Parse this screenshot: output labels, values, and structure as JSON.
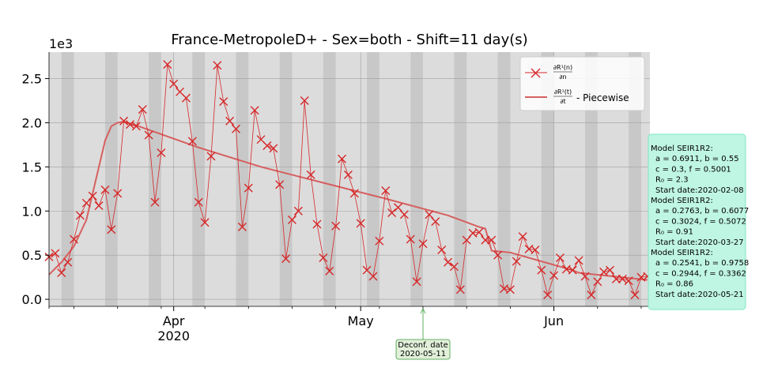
{
  "chart_data": {
    "type": "line",
    "title": "France-MetropoleD+ - Sex=both - Shift=11 day(s)",
    "y_offset_label": "1e3",
    "x_start": "2020-03-12",
    "x_end": "2020-06-05",
    "ylim": [
      -0.08,
      2.8
    ],
    "yticks": [
      0.0,
      0.5,
      1.0,
      1.5,
      2.0,
      2.5
    ],
    "ytick_labels": [
      "0.0",
      "0.5",
      "1.0",
      "1.5",
      "2.0",
      "2.5"
    ],
    "xticks": [
      {
        "date": "2020-04-01",
        "label": "Apr",
        "sublabel": "2020"
      },
      {
        "date": "2020-05-01",
        "label": "May",
        "sublabel": ""
      },
      {
        "date": "2020-06-01",
        "label": "Jun",
        "sublabel": ""
      }
    ],
    "weekend_shading": true,
    "grid": true,
    "series": [
      {
        "name": "dR¹(n)/dn",
        "legend_numerator": "∂R¹(n)",
        "legend_denominator": "∂n",
        "color": "#d62728",
        "marker": "x",
        "x": [
          "2020-03-12",
          "2020-03-13",
          "2020-03-14",
          "2020-03-15",
          "2020-03-16",
          "2020-03-17",
          "2020-03-18",
          "2020-03-19",
          "2020-03-20",
          "2020-03-21",
          "2020-03-22",
          "2020-03-23",
          "2020-03-24",
          "2020-03-25",
          "2020-03-26",
          "2020-03-27",
          "2020-03-28",
          "2020-03-29",
          "2020-03-30",
          "2020-03-31",
          "2020-04-01",
          "2020-04-02",
          "2020-04-03",
          "2020-04-04",
          "2020-04-05",
          "2020-04-06",
          "2020-04-07",
          "2020-04-08",
          "2020-04-09",
          "2020-04-10",
          "2020-04-11",
          "2020-04-12",
          "2020-04-13",
          "2020-04-14",
          "2020-04-15",
          "2020-04-16",
          "2020-04-17",
          "2020-04-18",
          "2020-04-19",
          "2020-04-20",
          "2020-04-21",
          "2020-04-22",
          "2020-04-23",
          "2020-04-24",
          "2020-04-25",
          "2020-04-26",
          "2020-04-27",
          "2020-04-28",
          "2020-04-29",
          "2020-04-30",
          "2020-05-01",
          "2020-05-02",
          "2020-05-03",
          "2020-05-04",
          "2020-05-05",
          "2020-05-06",
          "2020-05-07",
          "2020-05-08",
          "2020-05-09",
          "2020-05-10",
          "2020-05-11",
          "2020-05-12",
          "2020-05-13",
          "2020-05-14",
          "2020-05-15",
          "2020-05-16",
          "2020-05-17",
          "2020-05-18",
          "2020-05-19",
          "2020-05-20",
          "2020-05-21",
          "2020-05-22",
          "2020-05-23",
          "2020-05-24",
          "2020-05-25",
          "2020-05-26",
          "2020-05-27",
          "2020-05-28",
          "2020-05-29",
          "2020-05-30",
          "2020-05-31",
          "2020-06-01",
          "2020-06-02",
          "2020-06-03",
          "2020-06-04",
          "2020-06-05"
        ],
        "y": [
          0.48,
          0.52,
          0.3,
          0.42,
          0.68,
          0.95,
          1.09,
          1.17,
          1.06,
          1.24,
          0.79,
          1.2,
          2.02,
          1.98,
          1.96,
          2.15,
          1.86,
          1.1,
          1.66,
          2.66,
          2.44,
          2.35,
          2.28,
          1.79,
          1.1,
          0.87,
          1.62,
          2.65,
          2.24,
          2.02,
          1.93,
          0.82,
          1.26,
          2.14,
          1.81,
          1.74,
          1.71,
          1.3,
          0.46,
          0.9,
          1.0,
          2.25,
          1.41,
          0.85,
          0.47,
          0.32,
          0.83,
          1.59,
          1.41,
          1.2,
          0.86,
          0.33,
          0.26,
          0.66,
          1.23,
          0.98,
          1.04,
          0.96,
          0.68,
          0.2,
          0.63,
          0.96,
          0.88,
          0.56,
          0.42,
          0.37,
          0.11,
          0.67,
          0.75,
          0.76,
          0.67,
          0.67,
          0.5,
          0.12,
          0.11,
          0.43,
          0.71,
          0.57,
          0.56,
          0.33,
          0.05,
          0.27,
          0.47,
          0.34,
          0.33,
          0.44
        ]
      },
      {
        "name": "dR¹(t)/dt - Piecewise",
        "legend_numerator": "∂R¹(t)",
        "legend_denominator": "∂t",
        "legend_suffix": "- Piecewise",
        "color": "#d65f5f",
        "marker": "none",
        "x": [
          "2020-03-12",
          "2020-03-14",
          "2020-03-16",
          "2020-03-18",
          "2020-03-20",
          "2020-03-21",
          "2020-03-22",
          "2020-03-23",
          "2020-03-24",
          "2020-03-26",
          "2020-04-05",
          "2020-04-15",
          "2020-04-25",
          "2020-05-05",
          "2020-05-15",
          "2020-05-20",
          "2020-05-21",
          "2020-05-22",
          "2020-05-25",
          "2020-05-30",
          "2020-06-04",
          "2020-06-05"
        ],
        "y": [
          0.28,
          0.42,
          0.6,
          0.9,
          1.5,
          1.8,
          1.96,
          2.0,
          2.01,
          1.97,
          1.72,
          1.5,
          1.32,
          1.14,
          0.95,
          0.82,
          0.8,
          0.55,
          0.53,
          0.43,
          0.33,
          0.3
        ]
      }
    ],
    "late_points": {
      "x": [
        "2020-06-06",
        "2020-06-07",
        "2020-06-08",
        "2020-06-09",
        "2020-06-10",
        "2020-06-11",
        "2020-06-12",
        "2020-06-13",
        "2020-06-14",
        "2020-06-15",
        "2020-06-16"
      ],
      "y": [
        0.26,
        0.05,
        0.2,
        0.31,
        0.33,
        0.23,
        0.23,
        0.21,
        0.05,
        0.25,
        0.26
      ]
    },
    "late_piecewise": {
      "x": [
        "2020-06-05",
        "2020-06-16"
      ],
      "y": [
        0.3,
        0.22
      ]
    },
    "legend_position": "upper right",
    "annotation": {
      "label": "Deconf. date",
      "date_text": "2020-05-11",
      "date": "2020-05-11"
    },
    "models": [
      {
        "name": "Model SEIR1R2:",
        "line1": "a = 0.6911, b = 0.55",
        "line2": "c = 0.3, f = 0.5001",
        "line3": "R₀ = 2.3",
        "start": "Start date:2020-02-08"
      },
      {
        "name": "Model SEIR1R2:",
        "line1": "a = 0.2763, b = 0.6077",
        "line2": "c = 0.3024, f = 0.5072",
        "line3": "R₀ = 0.91",
        "start": "Start date:2020-03-27"
      },
      {
        "name": "Model SEIR1R2:",
        "line1": "a = 0.2541, b = 0.9758",
        "line2": "c = 0.2944, f = 0.3362",
        "line3": "R₀ = 0.86",
        "start": "Start date:2020-05-21"
      }
    ]
  },
  "colors": {
    "plot_bg": "#dcdcdc",
    "weekend_band": "#c8c8c8",
    "grid": "#a0a0a0",
    "model_box": "#bff5e3",
    "model_box_border": "#7fe8c2",
    "deconf_box": "#e2f0da",
    "deconf_border": "#3a9a3a"
  }
}
